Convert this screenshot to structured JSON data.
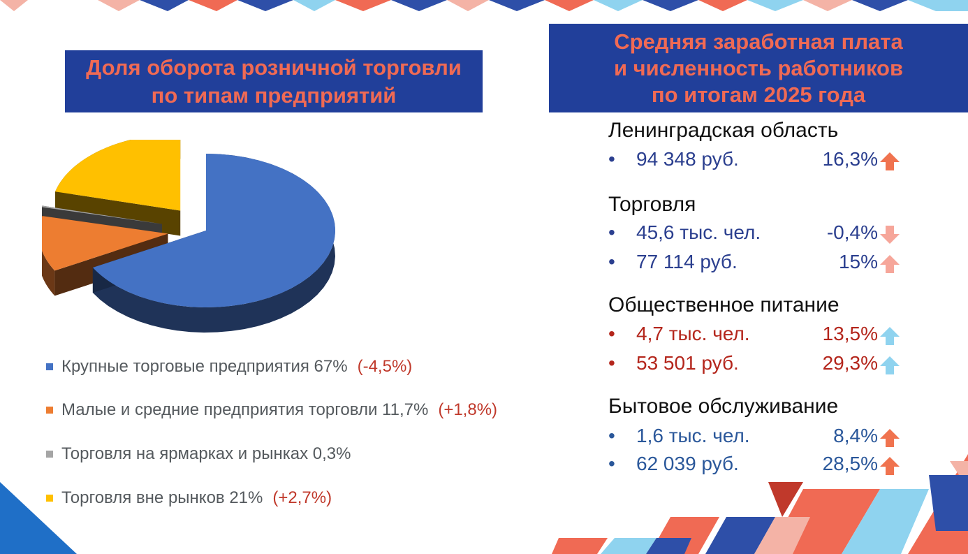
{
  "left_title": {
    "line1": "Доля оборота розничной торговли",
    "line2": "по типам предприятий"
  },
  "right_title": {
    "line1": "Средняя заработная плата",
    "line2": "и численность работников",
    "line3": "по итогам 2025 года"
  },
  "chart_data": {
    "type": "pie",
    "title": "Доля оборота розничной торговли по типам предприятий",
    "categories": [
      "Крупные торговые предприятия",
      "Малые и средние предприятия торговли",
      "Торговля на ярмарках и рынках",
      "Торговля вне рынков"
    ],
    "values": [
      67,
      11.7,
      0.3,
      21
    ],
    "colors": [
      "#4472c4",
      "#ed7d31",
      "#a5a5a5",
      "#ffc000"
    ],
    "legend_position": "bottom"
  },
  "legend": [
    {
      "label": "Крупные торговые предприятия 67%",
      "change": "(-4,5%)",
      "color": "#4472c4"
    },
    {
      "label": "Малые и средние предприятия торговли 11,7%",
      "change": "(+1,8%)",
      "color": "#ed7d31"
    },
    {
      "label": "Торговля на ярмарках и рынках 0,3%",
      "change": "",
      "color": "#a5a5a5"
    },
    {
      "label": "Торговля вне рынков 21%",
      "change": "(+2,7%)",
      "color": "#ffc000"
    }
  ],
  "sections": [
    {
      "title": "Ленинградская область",
      "rows": [
        {
          "value": "94 348 руб.",
          "change": "16,3%",
          "arrow": "up",
          "arrow_color": "#f0734f",
          "text_color": "blue1"
        }
      ]
    },
    {
      "title": "Торговля",
      "rows": [
        {
          "value": "45,6 тыс. чел.",
          "change": "-0,4%",
          "arrow": "down",
          "arrow_color": "#f6a69a",
          "text_color": "blue1"
        },
        {
          "value": "77 114 руб.",
          "change": "15%",
          "arrow": "up",
          "arrow_color": "#f6a69a",
          "text_color": "blue1"
        }
      ]
    },
    {
      "title": "Общественное питание",
      "rows": [
        {
          "value": "4,7 тыс. чел.",
          "change": "13,5%",
          "arrow": "up",
          "arrow_color": "#8fd3ef",
          "text_color": "red"
        },
        {
          "value": "53 501 руб.",
          "change": "29,3%",
          "arrow": "up",
          "arrow_color": "#8fd3ef",
          "text_color": "red"
        }
      ]
    },
    {
      "title": "Бытовое обслуживание",
      "rows": [
        {
          "value": "1,6 тыс. чел.",
          "change": "8,4%",
          "arrow": "up",
          "arrow_color": "#f0734f",
          "text_color": "blue2"
        },
        {
          "value": "62 039 руб.",
          "change": "28,5%",
          "arrow": "up",
          "arrow_color": "#f0734f",
          "text_color": "blue2"
        }
      ]
    }
  ]
}
